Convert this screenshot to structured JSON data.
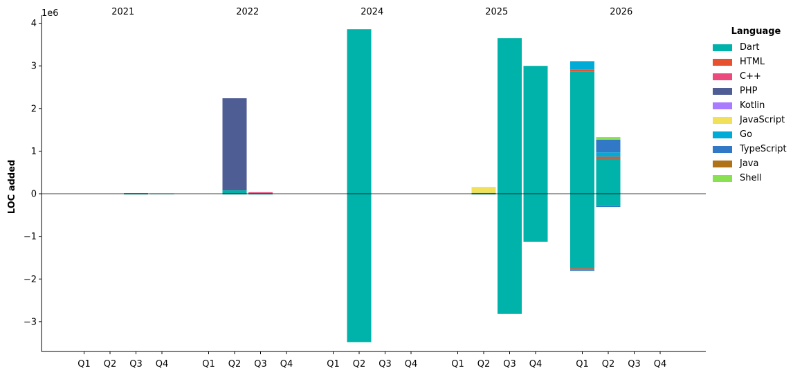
{
  "chart_data": {
    "type": "bar",
    "stacked": true,
    "ylabel": "LOC added",
    "yscale_label": "1e6",
    "yscale": 1000000,
    "ylim": [
      -3.7,
      4.05
    ],
    "yticks": [
      -3,
      -2,
      -1,
      0,
      1,
      2,
      3,
      4
    ],
    "ytick_labels": [
      "−3",
      "−2",
      "−1",
      "0",
      "1",
      "2",
      "3",
      "4"
    ],
    "years": [
      "2021",
      "2022",
      "2024",
      "2025",
      "2026"
    ],
    "quarters": [
      "Q1",
      "Q2",
      "Q3",
      "Q4"
    ],
    "legend_title": "Language",
    "legend_position": "right",
    "languages": [
      {
        "name": "Dart",
        "color": "#00b3aa"
      },
      {
        "name": "HTML",
        "color": "#e8512e"
      },
      {
        "name": "C++",
        "color": "#ec4a7c"
      },
      {
        "name": "PHP",
        "color": "#4f5d95"
      },
      {
        "name": "Kotlin",
        "color": "#a97bff"
      },
      {
        "name": "JavaScript",
        "color": "#f1e05a"
      },
      {
        "name": "Go",
        "color": "#00acd7"
      },
      {
        "name": "TypeScript",
        "color": "#3178c6"
      },
      {
        "name": "Java",
        "color": "#b07219"
      },
      {
        "name": "Shell",
        "color": "#89e051"
      }
    ],
    "bars": [
      {
        "year": "2021",
        "quarter": "Q3",
        "segments": [
          {
            "lang": "Java",
            "from": 0,
            "to": 0.015
          },
          {
            "lang": "Dart",
            "from": -0.005,
            "to": 0
          }
        ]
      },
      {
        "year": "2021",
        "quarter": "Q4",
        "segments": [
          {
            "lang": "Dart",
            "from": -0.008,
            "to": 0.006
          }
        ]
      },
      {
        "year": "2022",
        "quarter": "Q2",
        "segments": [
          {
            "lang": "Dart",
            "from": 0,
            "to": 0.08
          },
          {
            "lang": "PHP",
            "from": 0.08,
            "to": 2.24
          },
          {
            "lang": "Dart",
            "from": -0.01,
            "to": 0
          }
        ]
      },
      {
        "year": "2022",
        "quarter": "Q3",
        "segments": [
          {
            "lang": "C++",
            "from": 0,
            "to": 0.035
          },
          {
            "lang": "Dart",
            "from": -0.008,
            "to": 0
          }
        ]
      },
      {
        "year": "2024",
        "quarter": "Q2",
        "segments": [
          {
            "lang": "Dart",
            "from": 0,
            "to": 3.86
          },
          {
            "lang": "Dart",
            "from": -3.48,
            "to": 0
          }
        ]
      },
      {
        "year": "2025",
        "quarter": "Q2",
        "segments": [
          {
            "lang": "Dart",
            "from": 0,
            "to": 0.02
          },
          {
            "lang": "JavaScript",
            "from": 0.02,
            "to": 0.16
          },
          {
            "lang": "Dart",
            "from": -0.01,
            "to": 0
          }
        ]
      },
      {
        "year": "2025",
        "quarter": "Q3",
        "segments": [
          {
            "lang": "Dart",
            "from": 0,
            "to": 3.65
          },
          {
            "lang": "Dart",
            "from": -2.82,
            "to": 0
          }
        ]
      },
      {
        "year": "2025",
        "quarter": "Q4",
        "segments": [
          {
            "lang": "Dart",
            "from": 0,
            "to": 3.0
          },
          {
            "lang": "Dart",
            "from": -1.13,
            "to": 0
          }
        ]
      },
      {
        "year": "2026",
        "quarter": "Q1",
        "segments": [
          {
            "lang": "Dart",
            "from": 0,
            "to": 2.87
          },
          {
            "lang": "HTML",
            "from": 2.87,
            "to": 2.91
          },
          {
            "lang": "Go",
            "from": 2.91,
            "to": 3.11
          },
          {
            "lang": "Dart",
            "from": -1.75,
            "to": 0
          },
          {
            "lang": "HTML",
            "from": -1.78,
            "to": -1.75
          },
          {
            "lang": "TypeScript",
            "from": -1.81,
            "to": -1.78
          }
        ]
      },
      {
        "year": "2026",
        "quarter": "Q2",
        "segments": [
          {
            "lang": "Dart",
            "from": 0,
            "to": 0.82
          },
          {
            "lang": "HTML",
            "from": 0.82,
            "to": 0.87
          },
          {
            "lang": "Go",
            "from": 0.87,
            "to": 0.97
          },
          {
            "lang": "TypeScript",
            "from": 0.97,
            "to": 1.27
          },
          {
            "lang": "Shell",
            "from": 1.27,
            "to": 1.33
          },
          {
            "lang": "Dart",
            "from": -0.29,
            "to": 0
          },
          {
            "lang": "TypeScript",
            "from": -0.31,
            "to": -0.29
          }
        ]
      }
    ]
  }
}
